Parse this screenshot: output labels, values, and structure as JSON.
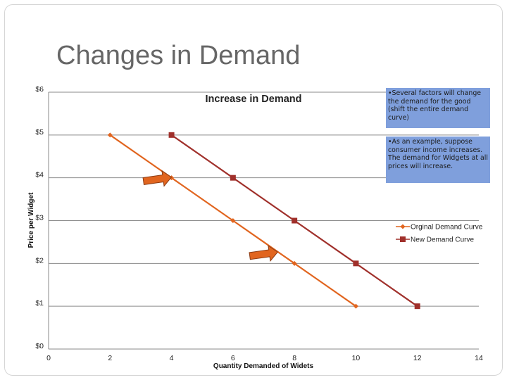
{
  "slide": {
    "title": "Changes in Demand",
    "notes": [
      "•Several factors will change the demand for the good (shift the entire demand curve)",
      "•As an example, suppose consumer income increases. The demand for Widgets at all prices will increase."
    ]
  },
  "chart_data": {
    "type": "line",
    "title": "Increase in Demand",
    "xlabel": "Quantity Demanded of Widets",
    "ylabel": "Price per Widget",
    "xlim": [
      0,
      14
    ],
    "ylim": [
      0,
      6
    ],
    "xticks": [
      0,
      2,
      4,
      6,
      8,
      10,
      12,
      14
    ],
    "yticks": [
      0,
      1,
      2,
      3,
      4,
      5,
      6
    ],
    "ytick_labels": [
      "$0",
      "$1",
      "$2",
      "$3",
      "$4",
      "$5",
      "$6"
    ],
    "grid": "horizontal",
    "legend_position": "right",
    "series": [
      {
        "name": "Orginal Demand Curve",
        "color": "#e1651f",
        "marker": "diamond",
        "x": [
          2,
          4,
          6,
          8,
          10
        ],
        "y": [
          5,
          4,
          3,
          2,
          1
        ]
      },
      {
        "name": "New Demand Curve",
        "color": "#a0302b",
        "marker": "square",
        "x": [
          4,
          6,
          8,
          10,
          12
        ],
        "y": [
          5,
          4,
          3,
          2,
          1
        ]
      }
    ],
    "annotations": [
      {
        "type": "arrow",
        "color": "#e1651f",
        "near": [
          4,
          4
        ]
      },
      {
        "type": "arrow",
        "color": "#e1651f",
        "near": [
          7,
          2.4
        ]
      }
    ]
  }
}
